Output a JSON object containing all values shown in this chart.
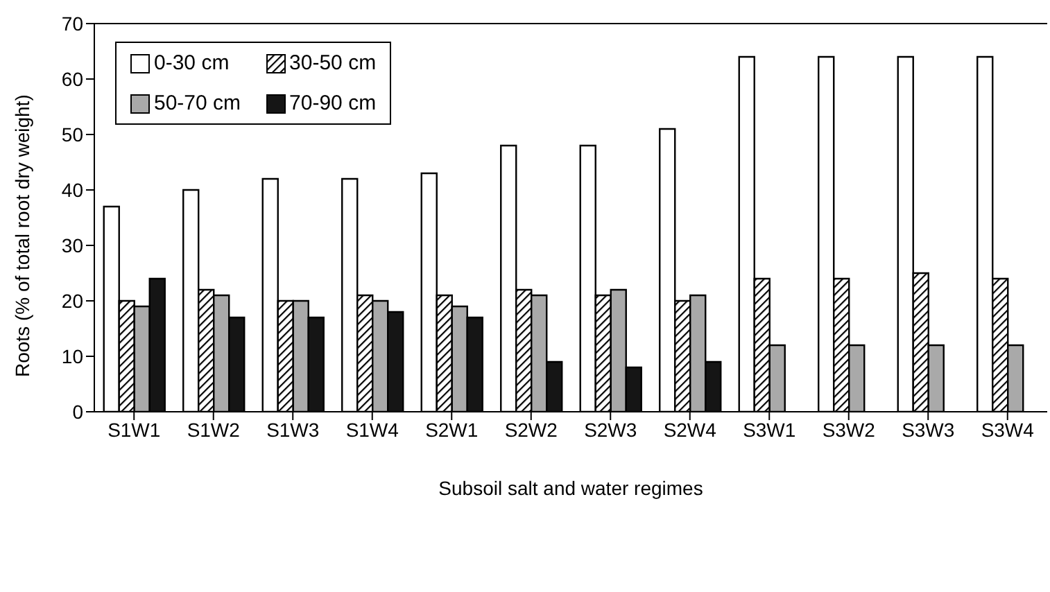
{
  "chart_data": {
    "type": "bar",
    "xlabel": "Subsoil salt and water regimes",
    "ylabel": "Roots (% of total root dry weight)",
    "categories": [
      "S1W1",
      "S1W2",
      "S1W3",
      "S1W4",
      "S2W1",
      "S2W2",
      "S2W3",
      "S2W4",
      "S3W1",
      "S3W2",
      "S3W3",
      "S3W4"
    ],
    "series": [
      {
        "name": "0-30 cm",
        "color": "#ffffff",
        "values": [
          37,
          40,
          42,
          42,
          43,
          48,
          48,
          51,
          64,
          64,
          64,
          64
        ]
      },
      {
        "name": "30-50 cm",
        "color": "#000000",
        "values": [
          20,
          22,
          20,
          21,
          21,
          22,
          21,
          20,
          24,
          24,
          25,
          24
        ]
      },
      {
        "name": "50-70 cm",
        "color": "#a9a9a9",
        "values": [
          19,
          21,
          20,
          20,
          19,
          21,
          22,
          21,
          12,
          12,
          12,
          12
        ]
      },
      {
        "name": "70-90 cm",
        "color": "#151515",
        "values": [
          24,
          17,
          17,
          18,
          17,
          9,
          8,
          9,
          null,
          null,
          null,
          null
        ]
      }
    ],
    "ylim": [
      0,
      70
    ],
    "yticks": [
      0,
      10,
      20,
      30,
      40,
      50,
      60,
      70
    ],
    "grid": false,
    "legend": "top left"
  }
}
